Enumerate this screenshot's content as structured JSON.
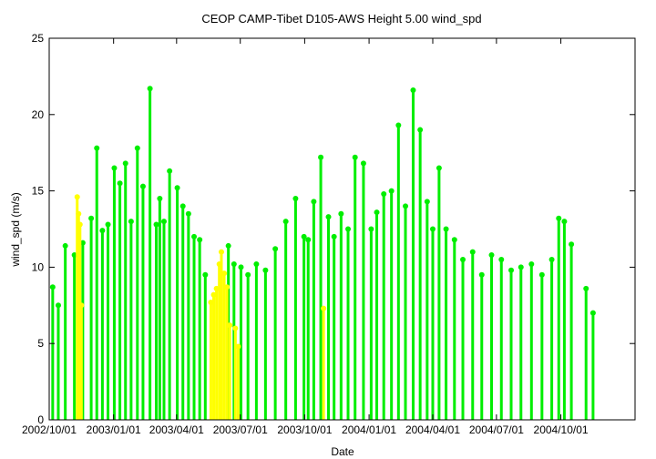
{
  "chart_data": {
    "type": "scatter",
    "title": "CEOP CAMP-Tibet D105-AWS Height 5.00 wind_spd",
    "xlabel": "Date",
    "ylabel": "wind_spd (m/s)",
    "ylim": [
      0,
      25
    ],
    "xlim": [
      "2002-10-01",
      "2005-01-15"
    ],
    "x_ticks": [
      "2002/10/01",
      "2003/01/01",
      "2003/04/01",
      "2003/07/01",
      "2003/10/01",
      "2004/01/01",
      "2004/04/01",
      "2004/07/01",
      "2004/10/01"
    ],
    "y_ticks": [
      0,
      5,
      10,
      15,
      20,
      25
    ],
    "grid": false,
    "legend": "none",
    "series": [
      {
        "color": "#00ee00",
        "x": [
          "2002-10-06",
          "2002-10-14",
          "2002-10-24",
          "2002-11-06",
          "2002-11-18",
          "2002-11-30",
          "2002-12-08",
          "2002-12-16",
          "2002-12-24",
          "2003-01-02",
          "2003-01-10",
          "2003-01-18",
          "2003-01-26",
          "2003-02-04",
          "2003-02-12",
          "2003-02-22",
          "2003-03-03",
          "2003-03-08",
          "2003-03-14",
          "2003-03-22",
          "2003-04-02",
          "2003-04-10",
          "2003-04-18",
          "2003-04-26",
          "2003-05-04",
          "2003-05-12",
          "2003-06-14",
          "2003-06-22",
          "2003-07-02",
          "2003-07-12",
          "2003-07-24",
          "2003-08-06",
          "2003-08-20",
          "2003-09-04",
          "2003-09-18",
          "2003-09-30",
          "2003-10-06",
          "2003-10-14",
          "2003-10-24",
          "2003-11-04",
          "2003-11-12",
          "2003-11-22",
          "2003-12-02",
          "2003-12-12",
          "2003-12-24",
          "2004-01-04",
          "2004-01-12",
          "2004-01-22",
          "2004-02-02",
          "2004-02-12",
          "2004-02-22",
          "2004-03-04",
          "2004-03-14",
          "2004-03-24",
          "2004-04-01",
          "2004-04-10",
          "2004-04-20",
          "2004-05-02",
          "2004-05-14",
          "2004-05-28",
          "2004-06-10",
          "2004-06-24",
          "2004-07-08",
          "2004-07-22",
          "2004-08-05",
          "2004-08-20",
          "2004-09-04",
          "2004-09-18",
          "2004-09-28",
          "2004-10-06",
          "2004-10-16",
          "2004-11-06",
          "2004-11-16"
        ],
        "y": [
          8.7,
          7.5,
          11.4,
          10.8,
          11.6,
          13.2,
          17.8,
          12.4,
          12.8,
          16.5,
          15.5,
          16.8,
          13.0,
          17.8,
          15.3,
          21.7,
          12.8,
          14.5,
          13.0,
          16.3,
          15.2,
          14.0,
          13.5,
          12.0,
          11.8,
          9.5,
          11.4,
          10.2,
          10.0,
          9.5,
          10.2,
          9.8,
          11.2,
          13.0,
          14.5,
          12.0,
          11.8,
          14.3,
          17.2,
          13.3,
          12.0,
          13.5,
          12.5,
          17.2,
          16.8,
          12.5,
          13.6,
          14.8,
          15.0,
          19.3,
          14.0,
          21.6,
          19.0,
          14.3,
          12.5,
          16.5,
          12.5,
          11.8,
          10.5,
          11.0,
          9.5,
          10.8,
          10.5,
          9.8,
          10.0,
          10.2,
          9.5,
          10.5,
          13.2,
          13.0,
          11.5,
          8.6,
          7.0
        ]
      },
      {
        "color": "#ffff00",
        "x": [
          "2002-11-10",
          "2002-11-12",
          "2002-11-14",
          "2002-11-16",
          "2003-05-20",
          "2003-05-24",
          "2003-05-28",
          "2003-06-01",
          "2003-06-04",
          "2003-06-08",
          "2003-06-12",
          "2003-06-16",
          "2003-06-24",
          "2003-06-28",
          "2003-10-28"
        ],
        "y": [
          14.6,
          13.5,
          12.8,
          7.5,
          7.7,
          8.2,
          8.6,
          10.2,
          11.0,
          9.6,
          8.7,
          6.2,
          6.0,
          4.8,
          7.3
        ]
      }
    ]
  }
}
